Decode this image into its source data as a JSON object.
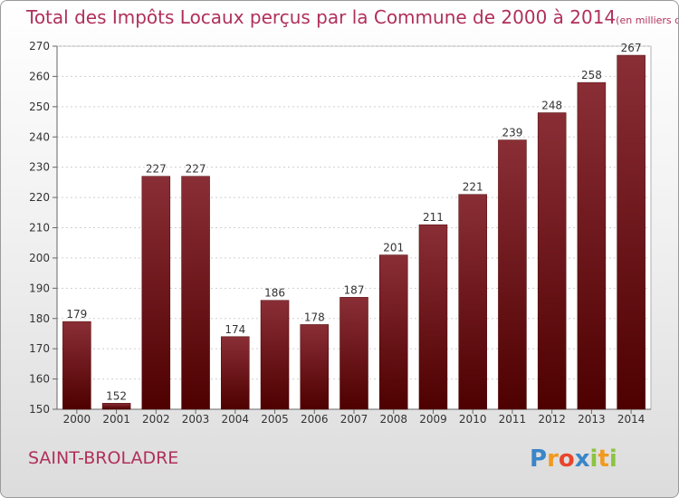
{
  "chart_data": {
    "type": "bar",
    "title": "Total des Impôts Locaux perçus par la Commune de 2000 à 2014",
    "unit": "(en milliers d'€)",
    "categories": [
      "2000",
      "2001",
      "2002",
      "2003",
      "2004",
      "2005",
      "2006",
      "2007",
      "2008",
      "2009",
      "2010",
      "2011",
      "2012",
      "2013",
      "2014"
    ],
    "values": [
      179,
      152,
      227,
      227,
      174,
      186,
      178,
      187,
      201,
      211,
      221,
      239,
      248,
      258,
      267
    ],
    "ylim": [
      150,
      270
    ],
    "yticks": [
      150,
      160,
      170,
      180,
      190,
      200,
      210,
      220,
      230,
      240,
      250,
      260,
      270
    ],
    "grid": true,
    "bar_color_top": "#8a2e36",
    "bar_color_bottom": "#4e0000"
  },
  "commune": "SAINT-BROLADRE",
  "logo": {
    "text": "Proxiti",
    "letters": [
      {
        "ch": "P",
        "color": "#3a86c8"
      },
      {
        "ch": "r",
        "color": "#f29a1f"
      },
      {
        "ch": "o",
        "color": "#e8452c"
      },
      {
        "ch": "x",
        "color": "#3a86c8"
      },
      {
        "ch": "i",
        "color": "#8cc43f"
      },
      {
        "ch": "t",
        "color": "#f29a1f"
      },
      {
        "ch": "i",
        "color": "#8cc43f"
      }
    ]
  },
  "colors": {
    "title": "#b0305a",
    "axis_text": "#333333"
  }
}
